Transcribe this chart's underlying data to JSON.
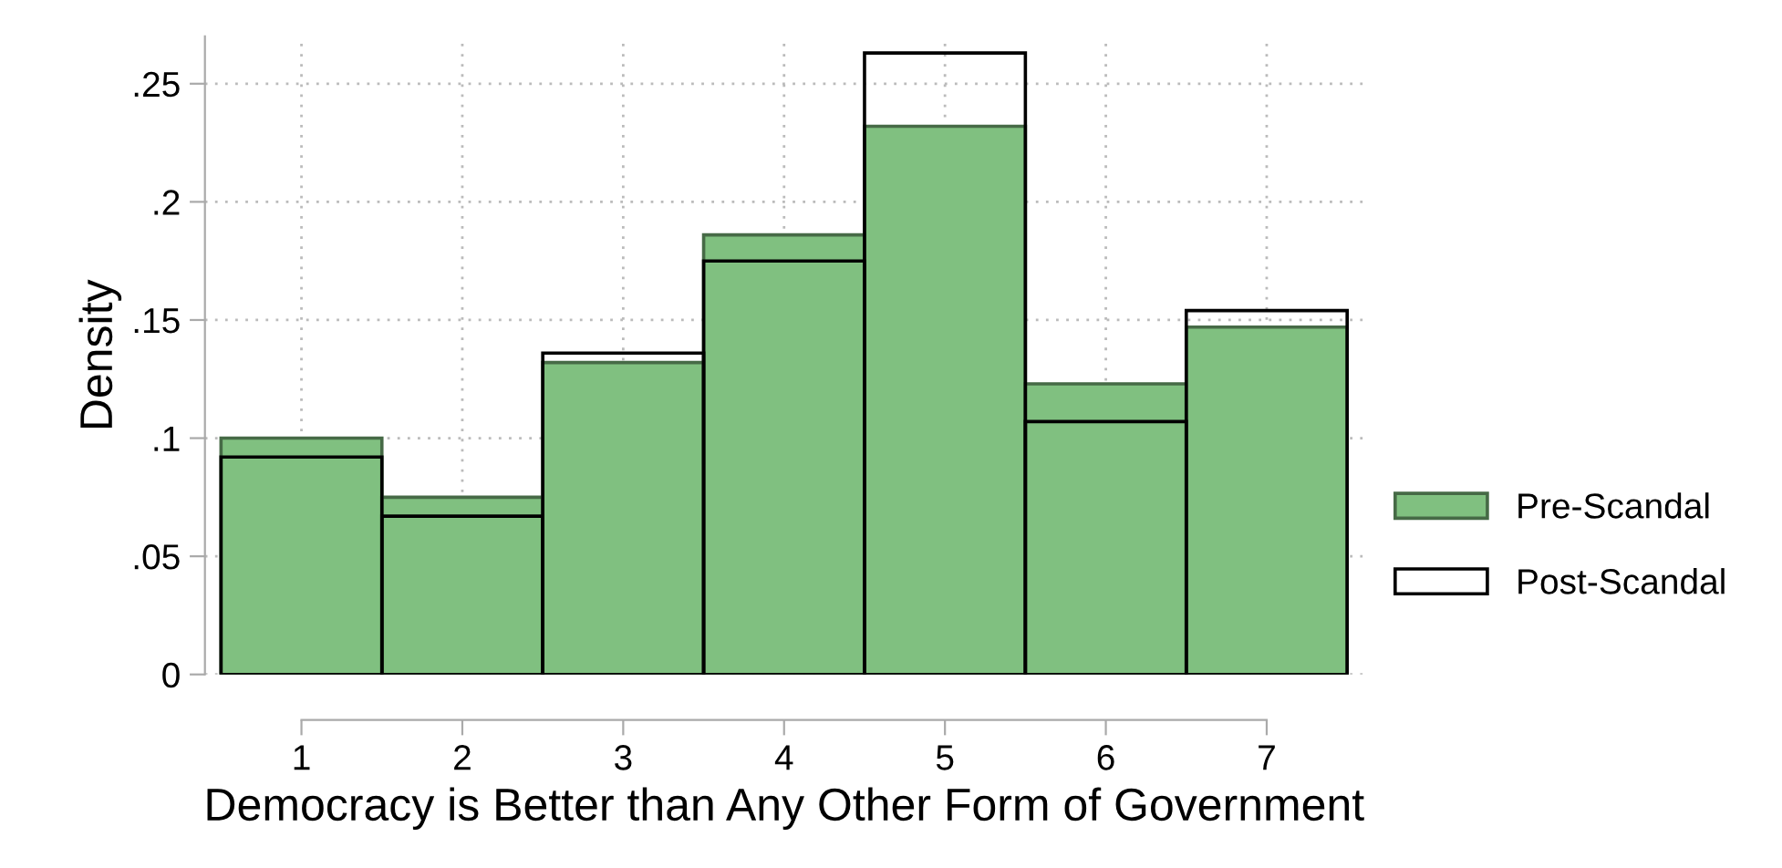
{
  "chart_data": {
    "type": "histogram",
    "xlabel": "Democracy is Better than Any Other Form of Government",
    "ylabel": "Density",
    "bins": [
      0.5,
      1.5,
      2.5,
      3.5,
      4.5,
      5.5,
      6.5,
      7.5
    ],
    "series": [
      {
        "name": "Pre-Scandal",
        "color": "#80c080",
        "values": [
          0.1,
          0.075,
          0.132,
          0.186,
          0.232,
          0.123,
          0.147
        ]
      },
      {
        "name": "Post-Scandal",
        "color": "#000000",
        "values": [
          0.092,
          0.067,
          0.136,
          0.175,
          0.263,
          0.107,
          0.154
        ]
      }
    ],
    "xlim": [
      0.4,
      7.6
    ],
    "xticks": [
      1,
      2,
      3,
      4,
      5,
      6,
      7
    ],
    "ylim": [
      0,
      0.27
    ],
    "yticks": [
      0,
      {
        "value": 0.05,
        "label": ".05"
      },
      {
        "value": 0.1,
        "label": ".1"
      },
      {
        "value": 0.15,
        "label": ".15"
      },
      {
        "value": 0.2,
        "label": ".2"
      },
      {
        "value": 0.25,
        "label": ".25"
      }
    ],
    "grid": true,
    "legend": "right"
  }
}
